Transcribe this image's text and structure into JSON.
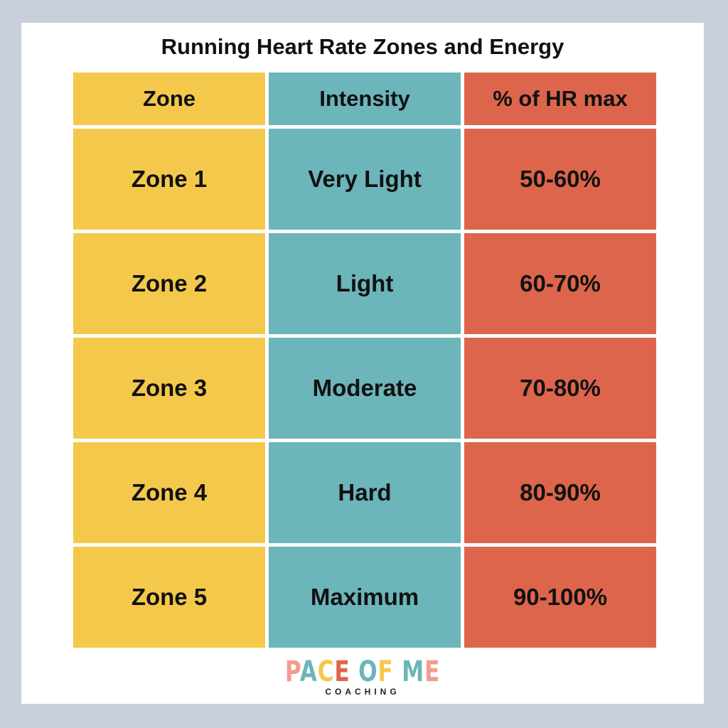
{
  "title": "Running Heart Rate Zones and Energy",
  "table": {
    "header": [
      "Zone",
      "Intensity",
      "% of HR max"
    ],
    "rows": [
      [
        "Zone 1",
        "Very Light",
        "50-60%"
      ],
      [
        "Zone 2",
        "Light",
        "60-70%"
      ],
      [
        "Zone 3",
        "Moderate",
        "70-80%"
      ],
      [
        "Zone 4",
        "Hard",
        "80-90%"
      ],
      [
        "Zone 5",
        "Maximum",
        "90-100%"
      ]
    ]
  },
  "logo": {
    "name": "PACE OF ME",
    "tagline": "COACHING"
  }
}
